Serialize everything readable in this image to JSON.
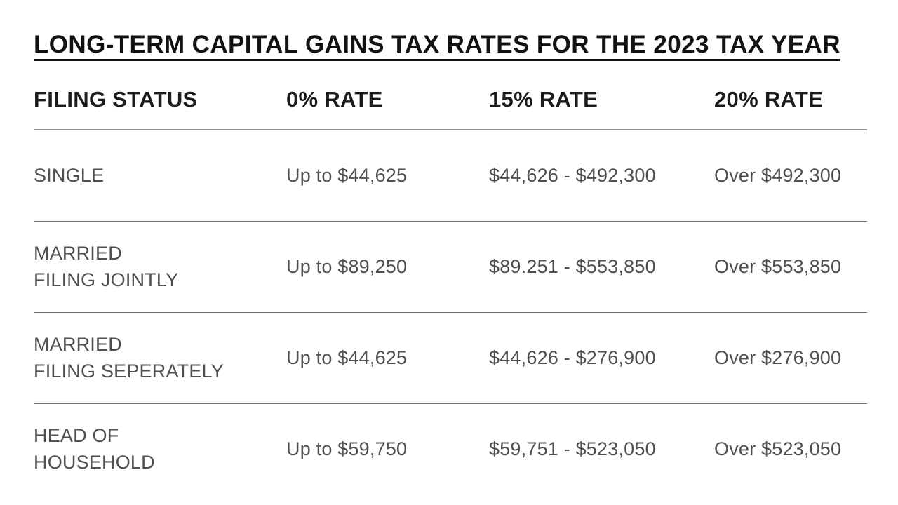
{
  "title": "LONG-TERM CAPITAL GAINS TAX RATES FOR THE 2023 TAX YEAR",
  "table": {
    "columns": [
      "FILING STATUS",
      "0% RATE",
      "15% RATE",
      "20% RATE"
    ],
    "rows": [
      {
        "status": "SINGLE",
        "rate0": "Up to $44,625",
        "rate15": "$44,626 - $492,300",
        "rate20": "Over $492,300"
      },
      {
        "status": "MARRIED\nFILING JOINTLY",
        "rate0": "Up to $89,250",
        "rate15": "$89.251 - $553,850",
        "rate20": "Over $553,850"
      },
      {
        "status": "MARRIED\nFILING SEPERATELY",
        "rate0": "Up to $44,625",
        "rate15": "$44,626 - $276,900",
        "rate20": "Over $276,900"
      },
      {
        "status": "HEAD OF\nHOUSEHOLD",
        "rate0": "Up to $59,750",
        "rate15": "$59,751 - $523,050",
        "rate20": "Over $523,050"
      }
    ]
  },
  "chart_data": {
    "type": "table",
    "title": "LONG-TERM CAPITAL GAINS TAX RATES FOR THE 2023 TAX YEAR",
    "columns": [
      "FILING STATUS",
      "0% RATE",
      "15% RATE",
      "20% RATE"
    ],
    "rows": [
      [
        "SINGLE",
        "Up to $44,625",
        "$44,626 - $492,300",
        "Over $492,300"
      ],
      [
        "MARRIED FILING JOINTLY",
        "Up to $89,250",
        "$89.251 - $553,850",
        "Over $553,850"
      ],
      [
        "MARRIED FILING SEPERATELY",
        "Up to $44,625",
        "$44,626 - $276,900",
        "Over $276,900"
      ],
      [
        "HEAD OF HOUSEHOLD",
        "Up to $59,750",
        "$59,751 - $523,050",
        "Over $523,050"
      ]
    ],
    "notes": "Static infographic table; typos preserved from source: SEPERATELY, $89.251"
  },
  "colors": {
    "background": "#ffffff",
    "title_text": "#121212",
    "header_text": "#1b1b1b",
    "body_text": "#4f4f4f",
    "header_divider": "#8d8d8d",
    "row_divider": "#6e6e6e"
  }
}
